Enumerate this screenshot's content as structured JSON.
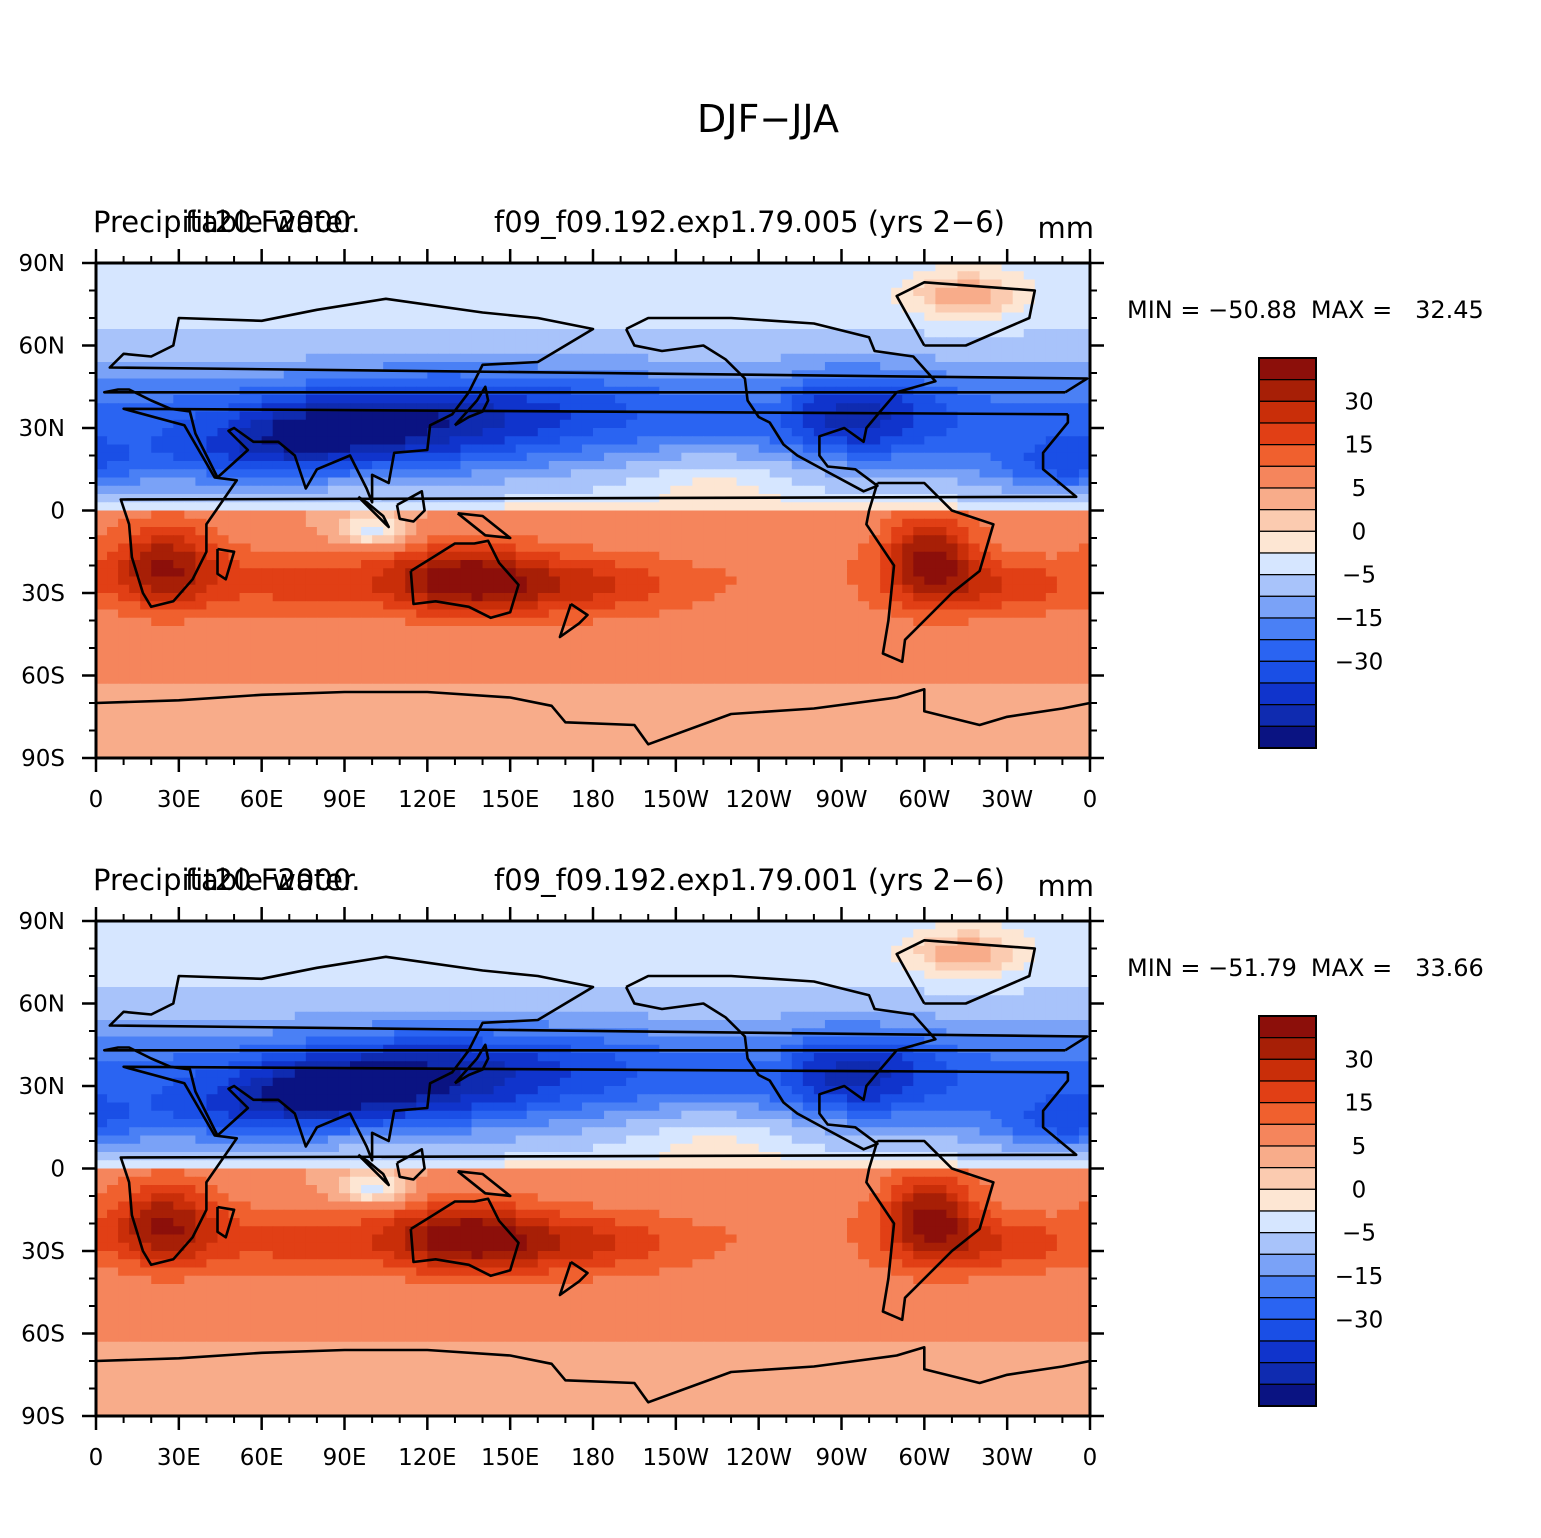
{
  "figure_title": "DJF−JJA",
  "colors": {
    "levels": [
      -40,
      -35,
      -30,
      -25,
      -20,
      -15,
      -10,
      -5,
      -2,
      0,
      2,
      5,
      10,
      15,
      20,
      25,
      30,
      35
    ],
    "palette": [
      "#0a1382",
      "#0f2bb0",
      "#1034cc",
      "#1a4fe6",
      "#2a64f2",
      "#4a80f5",
      "#7aa2f7",
      "#a8c3fa",
      "#d6e6ff",
      "#fde6d3",
      "#fbcbb0",
      "#f8ac8a",
      "#f5855c",
      "#f0602e",
      "#e13f15",
      "#c92e09",
      "#a71f06",
      "#8c0f0a"
    ],
    "land_outline": "#000000"
  },
  "chart_data": [
    {
      "type": "heatmap",
      "title_left": "Precipitable water",
      "title_center": "f09_f09.192.exp1.79.005 (yrs 2−6)",
      "title_center_prefix": "fit20 F2000.",
      "units": "mm",
      "min_label": "MIN = −50.88",
      "max_label": "MAX =   32.45",
      "min": -50.88,
      "max": 32.45,
      "x_ticks": [
        "0",
        "30E",
        "60E",
        "90E",
        "120E",
        "150E",
        "180",
        "150W",
        "120W",
        "90W",
        "60W",
        "30W",
        "0"
      ],
      "y_ticks": [
        "90N",
        "60N",
        "30N",
        "0",
        "30S",
        "60S",
        "90S"
      ],
      "colorbar_labels": [
        "30",
        "15",
        "5",
        "0",
        "−5",
        "−15",
        "−30"
      ],
      "xlim": [
        0,
        360
      ],
      "ylim": [
        -90,
        90
      ]
    },
    {
      "type": "heatmap",
      "title_left": "Precipitable water",
      "title_center": "f09_f09.192.exp1.79.001 (yrs 2−6)",
      "title_center_prefix": "fit20 F2000.",
      "units": "mm",
      "min_label": "MIN = −51.79",
      "max_label": "MAX =   33.66",
      "min": -51.79,
      "max": 33.66,
      "x_ticks": [
        "0",
        "30E",
        "60E",
        "90E",
        "120E",
        "150E",
        "180",
        "150W",
        "120W",
        "90W",
        "60W",
        "30W",
        "0"
      ],
      "y_ticks": [
        "90N",
        "60N",
        "30N",
        "0",
        "30S",
        "60S",
        "90S"
      ],
      "colorbar_labels": [
        "30",
        "15",
        "5",
        "0",
        "−5",
        "−15",
        "−30"
      ],
      "xlim": [
        0,
        360
      ],
      "ylim": [
        -90,
        90
      ]
    }
  ]
}
